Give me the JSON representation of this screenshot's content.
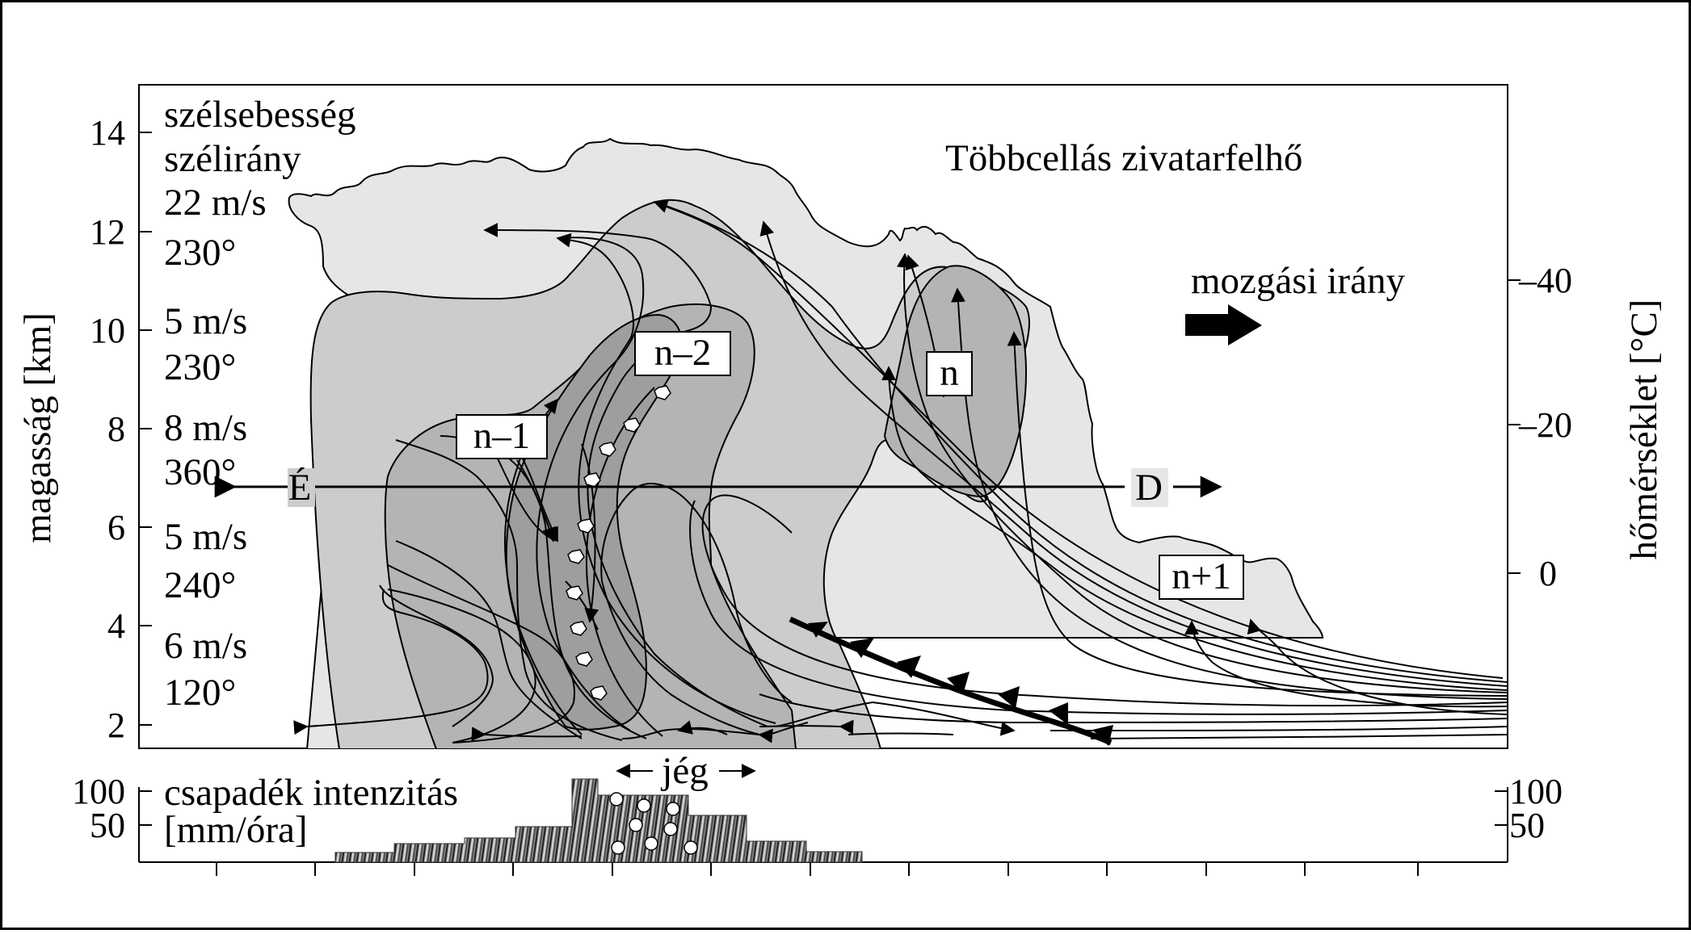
{
  "diagram": {
    "title": "Többcellás zivatarfelhő",
    "movement_label": "mozgási irány",
    "y_axis_left": {
      "label": "magasság [km]",
      "ticks": [
        "14",
        "12",
        "10",
        "8",
        "6",
        "4",
        "2"
      ]
    },
    "y_axis_right": {
      "label": "hőmérséklet [°C]",
      "ticks": [
        "–40",
        "–20",
        "0"
      ]
    },
    "wind_profile": [
      {
        "line1": "szélsebesség",
        "line2": "szélirány"
      },
      {
        "line1": "22 m/s",
        "line2": "230°"
      },
      {
        "line1": "5 m/s",
        "line2": "230°"
      },
      {
        "line1": "8 m/s",
        "line2": "360°"
      },
      {
        "line1": "5 m/s",
        "line2": "240°"
      },
      {
        "line1": "6 m/s",
        "line2": "120°"
      }
    ],
    "cells": [
      "n–2",
      "n–1",
      "n",
      "n+1"
    ],
    "section": {
      "left": "É",
      "right": "D"
    },
    "precip": {
      "label_line1": "csapadék intenzitás",
      "label_line2": "[mm/óra]",
      "hail_label": "jég",
      "ticks_left": [
        "100",
        "50"
      ],
      "ticks_right": [
        "100",
        "50"
      ]
    },
    "colors": {
      "cloud_light": "#e6e6e6",
      "cloud_mid": "#cccccc",
      "cloud_dark": "#b4b4b4",
      "cloud_core": "#9e9e9e",
      "line": "#000000"
    }
  }
}
